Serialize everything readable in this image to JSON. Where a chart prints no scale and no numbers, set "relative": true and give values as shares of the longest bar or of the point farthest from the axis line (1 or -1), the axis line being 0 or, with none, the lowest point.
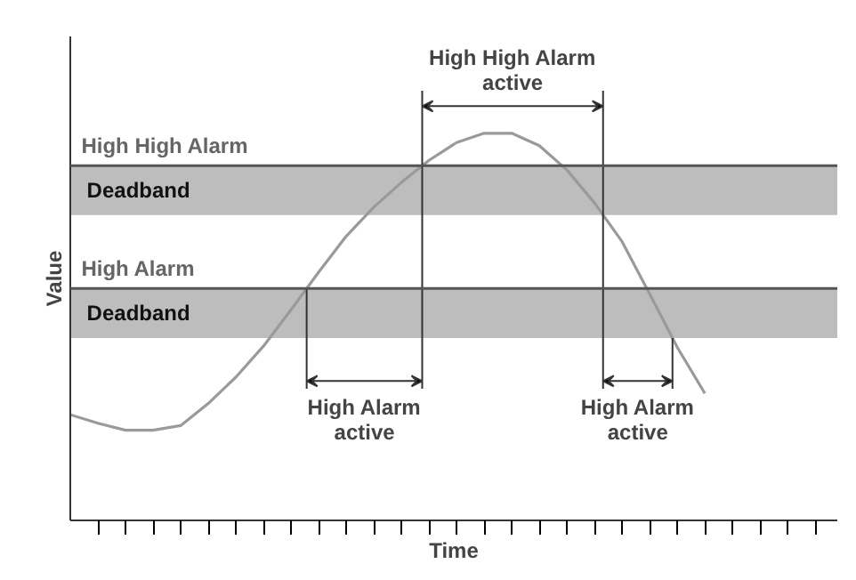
{
  "chart_data": {
    "type": "line",
    "relative": true,
    "xlabel": "Time",
    "ylabel": "Value",
    "categories": [
      null,
      null,
      null,
      null,
      null,
      null,
      null,
      null,
      null,
      null,
      null,
      null,
      null,
      null,
      null,
      null,
      null,
      null,
      null,
      null,
      null,
      null,
      null,
      null,
      null,
      null,
      null,
      null
    ],
    "series": [
      {
        "color": "#9a9a9a",
        "values": [
          0.273,
          0.251,
          0.233,
          0.233,
          0.245,
          0.302,
          0.37,
          0.45,
          0.544,
          0.641,
          0.734,
          0.809,
          0.873,
          0.93,
          0.976,
          1.0,
          1.0,
          0.968,
          0.905,
          0.82,
          0.72,
          0.585,
          0.447,
          0.328,
          null,
          null,
          null,
          null
        ]
      }
    ],
    "bands": [
      {
        "axis": "y",
        "from": 0.789,
        "to": 0.916,
        "label": "Deadband",
        "color": "#bdbdbd"
      },
      {
        "axis": "y",
        "from": 0.471,
        "to": 0.599,
        "label": "Deadband",
        "color": "#bdbdbd"
      }
    ],
    "ref_lines": [
      {
        "axis": "y",
        "value": 0.916,
        "label": "High High Alarm",
        "color": "#555555"
      },
      {
        "axis": "y",
        "value": 0.599,
        "label": "High Alarm",
        "color": "#555555"
      }
    ],
    "annotations": [
      "High High Alarm\nactive",
      "High Alarm\nactive",
      "High Alarm\nactive"
    ]
  }
}
